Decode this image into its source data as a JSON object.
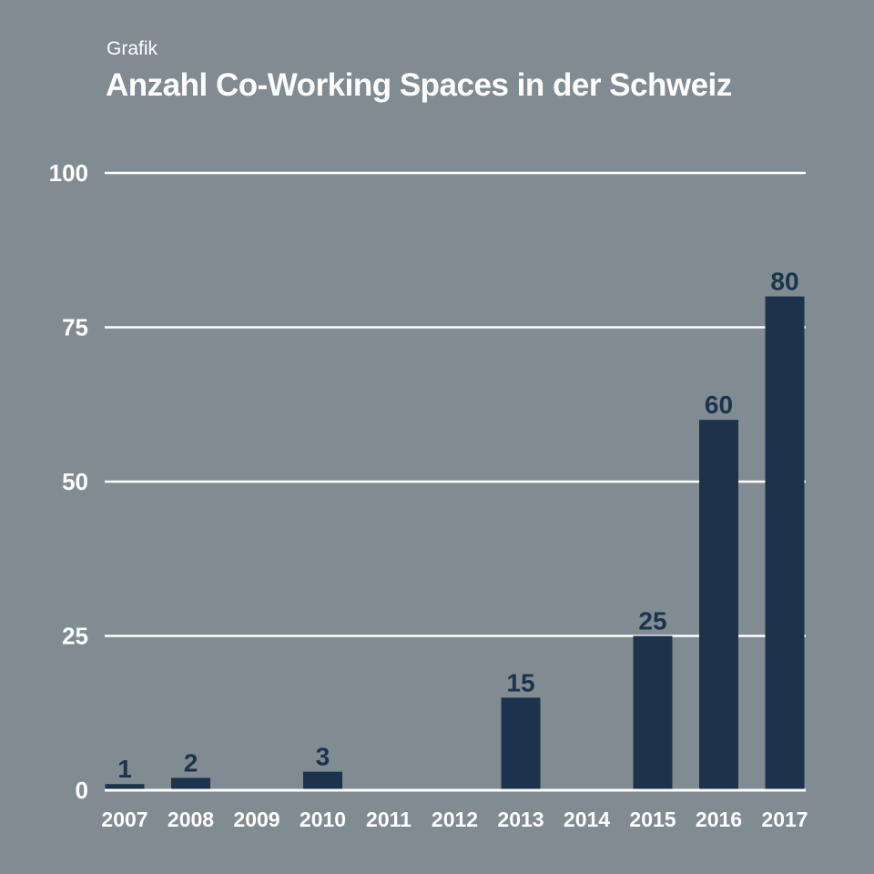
{
  "chart_data": {
    "type": "bar",
    "subtitle": "Grafik",
    "title": "Anzahl Co-Working Spaces in der Schweiz",
    "categories": [
      "2007",
      "2008",
      "2009",
      "2010",
      "2011",
      "2012",
      "2013",
      "2014",
      "2015",
      "2016",
      "2017"
    ],
    "values": [
      1,
      2,
      null,
      3,
      null,
      null,
      15,
      null,
      25,
      60,
      80
    ],
    "ylim": [
      0,
      100
    ],
    "yticks": [
      0,
      25,
      50,
      75,
      100
    ],
    "xlabel": "",
    "ylabel": "",
    "grid": true,
    "colors": {
      "bar": "#1b344b",
      "background": "#808c92",
      "grid": "#ffffff"
    }
  }
}
